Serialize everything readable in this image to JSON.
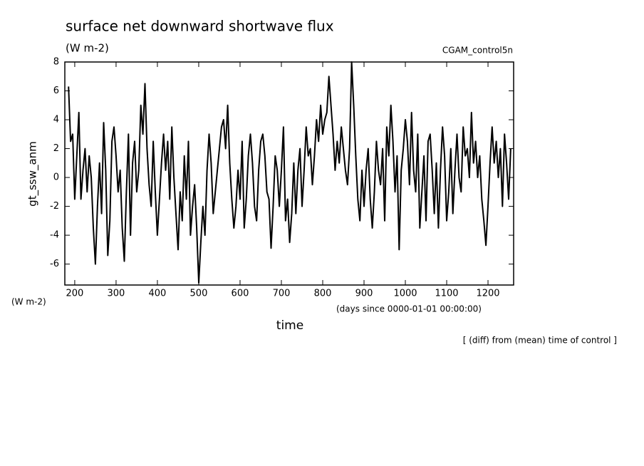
{
  "chart_data": {
    "type": "line",
    "title": "surface net downward shortwave flux",
    "subtitle": "(W m-2)",
    "annotation": "CGAM_control5n",
    "ylabel": "gt_ssw_anm",
    "ylabel_units": "(W m-2)",
    "xlabel": "time",
    "xlabel_units": "(days since 0000-01-01 00:00:00)",
    "note": "[ (diff) from (mean) time of control ]",
    "color": "#000000",
    "xlim": [
      176,
      1262
    ],
    "ylim": [
      -7.45,
      8
    ],
    "xticks": [
      200,
      300,
      400,
      500,
      600,
      700,
      800,
      900,
      1000,
      1100,
      1200
    ],
    "yticks": [
      -6,
      -4,
      -2,
      0,
      2,
      4,
      6,
      8
    ],
    "x": [
      185,
      190,
      195,
      200,
      205,
      210,
      215,
      220,
      225,
      230,
      235,
      240,
      245,
      250,
      255,
      260,
      265,
      270,
      275,
      280,
      285,
      290,
      295,
      300,
      305,
      310,
      315,
      320,
      325,
      330,
      335,
      340,
      345,
      350,
      355,
      360,
      365,
      370,
      375,
      380,
      385,
      390,
      395,
      400,
      405,
      410,
      415,
      420,
      425,
      430,
      435,
      440,
      445,
      450,
      455,
      460,
      465,
      470,
      475,
      480,
      485,
      490,
      495,
      500,
      505,
      510,
      515,
      520,
      525,
      530,
      535,
      540,
      545,
      550,
      555,
      560,
      565,
      570,
      575,
      580,
      585,
      590,
      595,
      600,
      605,
      610,
      615,
      620,
      625,
      630,
      635,
      640,
      645,
      650,
      655,
      660,
      665,
      670,
      675,
      680,
      685,
      690,
      695,
      700,
      705,
      710,
      715,
      720,
      725,
      730,
      735,
      740,
      745,
      750,
      755,
      760,
      765,
      770,
      775,
      780,
      785,
      790,
      795,
      800,
      805,
      810,
      815,
      820,
      825,
      830,
      835,
      840,
      845,
      850,
      855,
      860,
      865,
      870,
      875,
      880,
      885,
      890,
      895,
      900,
      905,
      910,
      915,
      920,
      925,
      930,
      935,
      940,
      945,
      950,
      955,
      960,
      965,
      970,
      975,
      980,
      985,
      990,
      995,
      1000,
      1005,
      1010,
      1015,
      1020,
      1025,
      1030,
      1035,
      1040,
      1045,
      1050,
      1055,
      1060,
      1065,
      1070,
      1075,
      1080,
      1085,
      1090,
      1095,
      1100,
      1105,
      1110,
      1115,
      1120,
      1125,
      1130,
      1135,
      1140,
      1145,
      1150,
      1155,
      1160,
      1165,
      1170,
      1175,
      1180,
      1185,
      1190,
      1195,
      1200,
      1205,
      1210,
      1215,
      1220,
      1225,
      1230,
      1235,
      1240,
      1245,
      1250,
      1255
    ],
    "values": [
      6.3,
      2.5,
      3.0,
      -1.5,
      1.5,
      4.5,
      -1.5,
      0.5,
      2.0,
      -1.0,
      1.5,
      0.0,
      -3.5,
      -6.0,
      -2.0,
      1.0,
      -2.5,
      3.8,
      0.5,
      -5.4,
      -3.0,
      2.5,
      3.5,
      1.5,
      -1.0,
      0.5,
      -3.5,
      -5.8,
      -1.0,
      3.0,
      -4.0,
      1.0,
      2.5,
      -1.0,
      0.5,
      5.0,
      3.0,
      6.5,
      2.0,
      -0.5,
      -2.0,
      2.5,
      -1.0,
      -4.0,
      -1.5,
      1.0,
      3.0,
      0.5,
      2.5,
      -1.5,
      3.5,
      0.0,
      -2.5,
      -5.0,
      -1.0,
      -3.0,
      1.5,
      -1.5,
      2.5,
      -4.0,
      -2.0,
      -0.5,
      -3.5,
      -7.3,
      -4.5,
      -2.0,
      -4.0,
      0.5,
      3.0,
      1.0,
      -2.5,
      -1.0,
      0.5,
      2.0,
      3.5,
      4.0,
      2.0,
      5.0,
      1.0,
      -1.5,
      -3.5,
      -2.0,
      0.5,
      -1.5,
      2.5,
      -3.5,
      -1.5,
      1.5,
      3.0,
      1.0,
      -2.0,
      -3.0,
      0.5,
      2.5,
      3.0,
      1.5,
      -1.0,
      -1.5,
      -4.9,
      -2.0,
      1.5,
      0.5,
      -2.0,
      0.5,
      3.5,
      -3.0,
      -1.5,
      -4.5,
      -2.5,
      1.0,
      -2.5,
      0.5,
      2.0,
      -2.0,
      0.5,
      3.5,
      1.5,
      2.0,
      -0.5,
      1.5,
      4.0,
      2.5,
      5.0,
      3.0,
      4.0,
      4.5,
      7.0,
      5.0,
      3.0,
      0.5,
      2.5,
      1.0,
      3.5,
      2.0,
      0.5,
      -0.5,
      2.0,
      8.0,
      5.0,
      1.5,
      -1.5,
      -3.0,
      0.5,
      -2.0,
      0.5,
      2.0,
      -1.5,
      -3.5,
      -1.0,
      2.5,
      0.5,
      -0.5,
      2.0,
      -3.0,
      3.5,
      1.5,
      5.0,
      2.5,
      -1.0,
      1.5,
      -5.0,
      0.5,
      2.0,
      4.0,
      2.5,
      -0.5,
      4.5,
      0.5,
      -1.0,
      3.0,
      -3.5,
      -1.0,
      1.5,
      -3.0,
      2.5,
      3.0,
      0.5,
      -2.5,
      1.0,
      -3.5,
      0.5,
      3.5,
      1.5,
      -3.0,
      -1.0,
      2.0,
      -2.5,
      0.5,
      3.0,
      0.0,
      -1.0,
      3.5,
      1.5,
      2.0,
      0.0,
      4.5,
      1.0,
      2.5,
      0.0,
      1.5,
      -1.5,
      -3.0,
      -4.7,
      -2.0,
      1.0,
      3.5,
      1.0,
      2.5,
      0.0,
      2.0,
      -2.0,
      3.0,
      1.0,
      -1.5,
      2.0
    ]
  }
}
